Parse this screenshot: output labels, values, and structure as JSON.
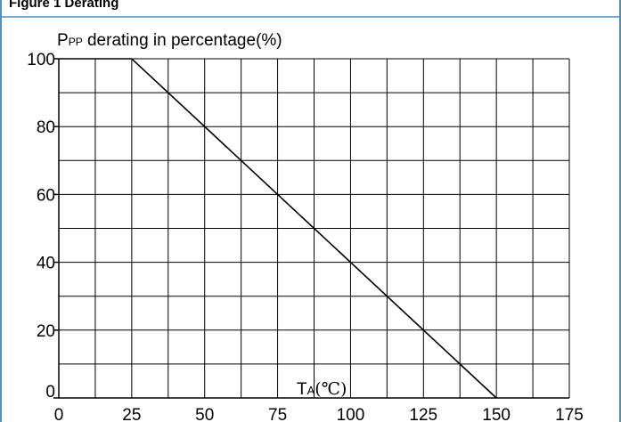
{
  "header_fragment": "Figure 1 Derating",
  "colors": {
    "frame_border": "#4a90c8",
    "grid": "#000000",
    "line": "#000000",
    "text": "#000000"
  },
  "chart_data": {
    "type": "line",
    "title_main": "P",
    "title_sub": "PP",
    "title_rest": " derating in percentage(%)",
    "xlabel_main": "T",
    "xlabel_sub": "A",
    "xlabel_unit": "(℃)",
    "xlim": [
      0,
      175
    ],
    "ylim": [
      0,
      100
    ],
    "x_ticks": [
      0,
      25,
      50,
      75,
      100,
      125,
      150,
      175
    ],
    "y_ticks": [
      0,
      20,
      40,
      60,
      80,
      100
    ],
    "grid": true,
    "series": [
      {
        "x": [
          0,
          25,
          150
        ],
        "y": [
          100,
          100,
          0
        ]
      }
    ]
  }
}
